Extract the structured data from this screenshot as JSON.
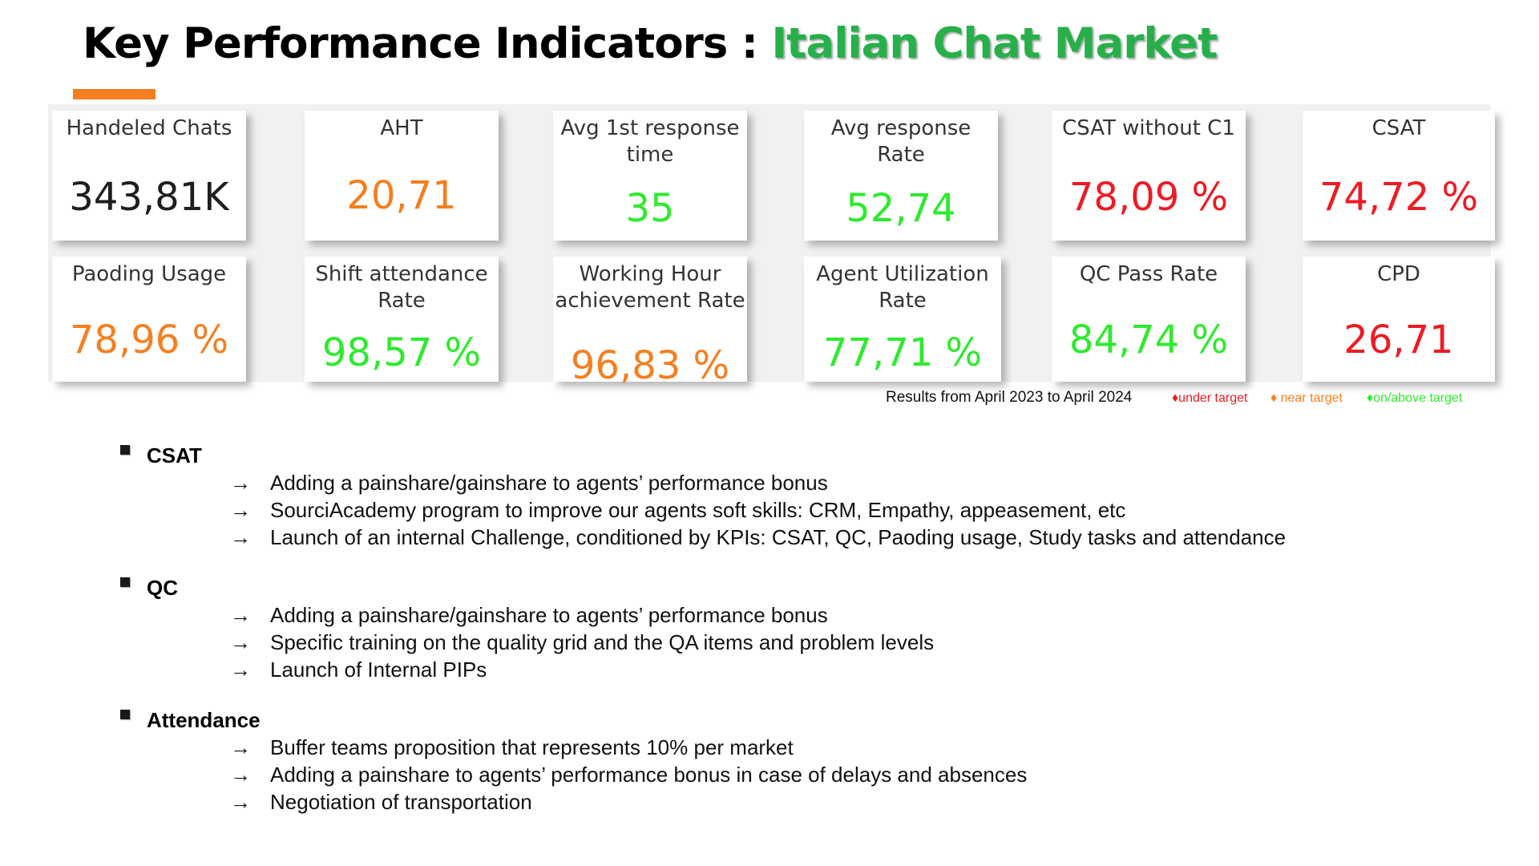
{
  "title": {
    "main": "Key Performance Indicators : ",
    "accent": "Italian Chat Market"
  },
  "colors": {
    "accent_green": "#27b04a",
    "orange_bar": "#f47f20",
    "under_target": "#ee1a24",
    "near_target": "#f47f20",
    "on_above_target": "#2eea2e"
  },
  "kpis": [
    {
      "label": "Handeled Chats",
      "value": "343,81K",
      "status": "neutral"
    },
    {
      "label": "AHT",
      "value": "20,71",
      "status": "near"
    },
    {
      "label": "Avg 1st response\ntime",
      "value": "35",
      "status": "on"
    },
    {
      "label": "Avg response\nRate",
      "value": "52,74",
      "status": "on"
    },
    {
      "label": "CSAT without C1",
      "value": "78,09 %",
      "status": "under"
    },
    {
      "label": "CSAT",
      "value": "74,72 %",
      "status": "under"
    },
    {
      "label": "Paoding Usage",
      "value": "78,96 %",
      "status": "near"
    },
    {
      "label": "Shift attendance\nRate",
      "value": "98,57 %",
      "status": "on"
    },
    {
      "label": "Working Hour\nachievement Rate",
      "value": "96,83 %",
      "status": "near"
    },
    {
      "label": "Agent Utilization\nRate",
      "value": "77,71 %",
      "status": "on"
    },
    {
      "label": "QC Pass Rate",
      "value": "84,74 %",
      "status": "on"
    },
    {
      "label": "CPD",
      "value": "26,71",
      "status": "under"
    }
  ],
  "note": "Results from April 2023 to April 2024",
  "legend": {
    "under": "♦under target",
    "near": "♦ near target",
    "on": "♦on/above target"
  },
  "sections": [
    {
      "title": "CSAT",
      "items": [
        "Adding a painshare/gainshare to agents’ performance bonus",
        "SourciAcademy program to improve our agents soft skills: CRM, Empathy, appeasement, etc",
        "Launch of an internal Challenge, conditioned by KPIs: CSAT, QC, Paoding usage, Study tasks and attendance"
      ]
    },
    {
      "title": "QC",
      "items": [
        "Adding a painshare/gainshare to agents’ performance bonus",
        "Specific training on the quality grid and the QA items and problem levels",
        "Launch of Internal PIPs"
      ]
    },
    {
      "title": "Attendance",
      "items": [
        "Buffer teams proposition that represents 10% per market",
        "Adding a painshare to agents’ performance bonus in case of delays and absences",
        "Negotiation of transportation"
      ]
    }
  ],
  "arrow_glyph": "→"
}
